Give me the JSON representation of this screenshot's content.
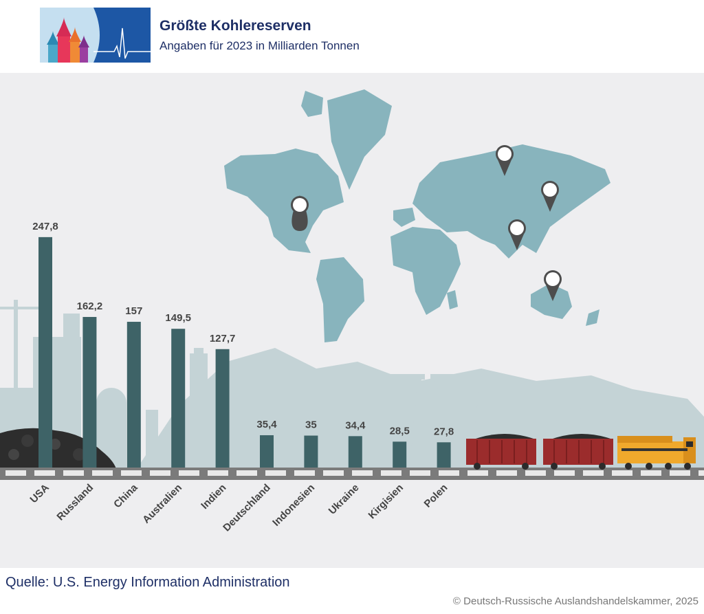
{
  "header": {
    "title": "Größte Kohlereserven",
    "subtitle": "Angaben für 2023 in Milliarden Tonnen",
    "logo_icon": "onion-domes-heartbeat-logo-icon"
  },
  "chart_data": {
    "type": "bar",
    "title": "Größte Kohlereserven",
    "subtitle": "Angaben für 2023 in Milliarden Tonnen",
    "xlabel": "",
    "ylabel": "",
    "ylim": [
      0,
      260
    ],
    "grid": false,
    "categories": [
      "USA",
      "Russland",
      "China",
      "Australien",
      "Indien",
      "Deutschland",
      "Indonesien",
      "Ukraine",
      "Kirgisien",
      "Polen"
    ],
    "values": [
      247.8,
      162.2,
      157,
      149.5,
      127.7,
      35.4,
      35,
      34.4,
      28.5,
      27.8
    ],
    "value_labels": [
      "247,8",
      "162,2",
      "157",
      "149,5",
      "127,7",
      "35,4",
      "35",
      "34,4",
      "28,5",
      "27,8"
    ],
    "bar_color": "#3e6367"
  },
  "colors": {
    "title": "#1e2f66",
    "map": "#88b4bd",
    "panel": "#eeeef0",
    "skyline": "#c4d3d6",
    "rail": "#7b7b7b",
    "wagon": "#9b2c2c",
    "locomotive": "#f0a92c"
  },
  "footer": {
    "source": "Quelle: U.S. Energy Information Administration",
    "copyright": "© Deutsch-Russische Auslandshandelskammer, 2025"
  }
}
